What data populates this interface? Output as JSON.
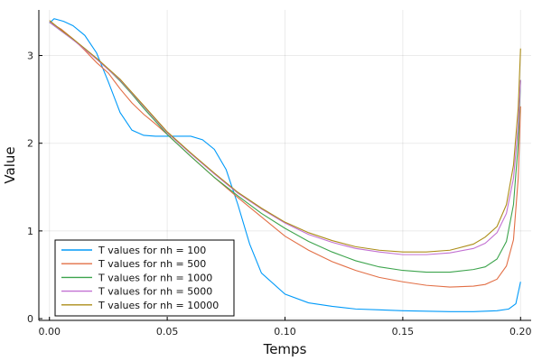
{
  "chart_data": {
    "type": "line",
    "title": "",
    "xlabel": "Temps",
    "ylabel": "Value",
    "xlim": [
      -0.0045,
      0.2045
    ],
    "ylim": [
      -0.02,
      3.52
    ],
    "xticks": [
      0.0,
      0.05,
      0.1,
      0.15,
      0.2
    ],
    "xtick_labels": [
      "0.00",
      "0.05",
      "0.10",
      "0.15",
      "0.20"
    ],
    "yticks": [
      0,
      1,
      2,
      3
    ],
    "ytick_labels": [
      "0",
      "1",
      "2",
      "3"
    ],
    "grid": true,
    "legend_position": "bottom-left",
    "series": [
      {
        "name": "T values for nh = 100",
        "color": "#009AF9",
        "x": [
          0.0,
          0.002,
          0.006,
          0.01,
          0.015,
          0.02,
          0.025,
          0.03,
          0.035,
          0.04,
          0.045,
          0.05,
          0.055,
          0.06,
          0.065,
          0.07,
          0.075,
          0.08,
          0.085,
          0.09,
          0.1,
          0.11,
          0.12,
          0.13,
          0.14,
          0.15,
          0.16,
          0.17,
          0.18,
          0.19,
          0.195,
          0.198,
          0.2
        ],
        "y": [
          3.37,
          3.42,
          3.39,
          3.34,
          3.23,
          3.03,
          2.7,
          2.35,
          2.15,
          2.09,
          2.08,
          2.08,
          2.08,
          2.08,
          2.04,
          1.93,
          1.7,
          1.3,
          0.85,
          0.52,
          0.28,
          0.18,
          0.14,
          0.11,
          0.1,
          0.09,
          0.085,
          0.08,
          0.08,
          0.09,
          0.11,
          0.17,
          0.42
        ]
      },
      {
        "name": "T values for nh = 500",
        "color": "#E26F46",
        "x": [
          0.0,
          0.005,
          0.01,
          0.015,
          0.02,
          0.025,
          0.03,
          0.035,
          0.04,
          0.045,
          0.05,
          0.06,
          0.07,
          0.08,
          0.09,
          0.1,
          0.11,
          0.12,
          0.13,
          0.14,
          0.15,
          0.16,
          0.17,
          0.18,
          0.185,
          0.19,
          0.194,
          0.197,
          0.199,
          0.2
        ],
        "y": [
          3.38,
          3.3,
          3.19,
          3.06,
          2.92,
          2.8,
          2.62,
          2.46,
          2.33,
          2.22,
          2.1,
          1.85,
          1.61,
          1.38,
          1.16,
          0.94,
          0.78,
          0.65,
          0.55,
          0.47,
          0.42,
          0.38,
          0.36,
          0.37,
          0.39,
          0.45,
          0.6,
          0.9,
          1.6,
          2.42
        ]
      },
      {
        "name": "T values for nh = 1000",
        "color": "#3DA44D",
        "x": [
          0.0,
          0.005,
          0.01,
          0.015,
          0.02,
          0.025,
          0.03,
          0.035,
          0.04,
          0.045,
          0.05,
          0.06,
          0.07,
          0.08,
          0.09,
          0.1,
          0.11,
          0.12,
          0.13,
          0.14,
          0.15,
          0.16,
          0.17,
          0.18,
          0.185,
          0.19,
          0.194,
          0.197,
          0.199,
          0.2
        ],
        "y": [
          3.38,
          3.28,
          3.18,
          3.08,
          2.96,
          2.84,
          2.71,
          2.56,
          2.4,
          2.25,
          2.1,
          1.85,
          1.61,
          1.4,
          1.2,
          1.03,
          0.88,
          0.76,
          0.66,
          0.59,
          0.55,
          0.53,
          0.53,
          0.56,
          0.59,
          0.68,
          0.88,
          1.3,
          2.0,
          2.72
        ]
      },
      {
        "name": "T values for nh = 5000",
        "color": "#C271D2",
        "x": [
          0.0,
          0.005,
          0.01,
          0.015,
          0.02,
          0.025,
          0.03,
          0.035,
          0.04,
          0.045,
          0.05,
          0.06,
          0.07,
          0.08,
          0.09,
          0.1,
          0.11,
          0.12,
          0.13,
          0.14,
          0.15,
          0.16,
          0.17,
          0.18,
          0.185,
          0.19,
          0.194,
          0.197,
          0.199,
          0.2
        ],
        "y": [
          3.38,
          3.28,
          3.18,
          3.07,
          2.96,
          2.84,
          2.72,
          2.57,
          2.42,
          2.27,
          2.12,
          1.88,
          1.65,
          1.43,
          1.25,
          1.09,
          0.96,
          0.87,
          0.8,
          0.76,
          0.73,
          0.73,
          0.75,
          0.8,
          0.86,
          0.98,
          1.2,
          1.6,
          2.2,
          2.72
        ]
      },
      {
        "name": "T values for nh = 10000",
        "color": "#AC8D18",
        "x": [
          0.0,
          0.005,
          0.01,
          0.015,
          0.02,
          0.025,
          0.03,
          0.035,
          0.04,
          0.045,
          0.05,
          0.06,
          0.07,
          0.08,
          0.09,
          0.1,
          0.11,
          0.12,
          0.13,
          0.14,
          0.15,
          0.16,
          0.17,
          0.18,
          0.185,
          0.19,
          0.194,
          0.197,
          0.199,
          0.2
        ],
        "y": [
          3.4,
          3.29,
          3.19,
          3.08,
          2.97,
          2.85,
          2.73,
          2.58,
          2.43,
          2.28,
          2.13,
          1.89,
          1.66,
          1.44,
          1.26,
          1.1,
          0.98,
          0.89,
          0.82,
          0.78,
          0.76,
          0.76,
          0.78,
          0.85,
          0.93,
          1.05,
          1.3,
          1.75,
          2.4,
          3.08
        ]
      }
    ]
  }
}
